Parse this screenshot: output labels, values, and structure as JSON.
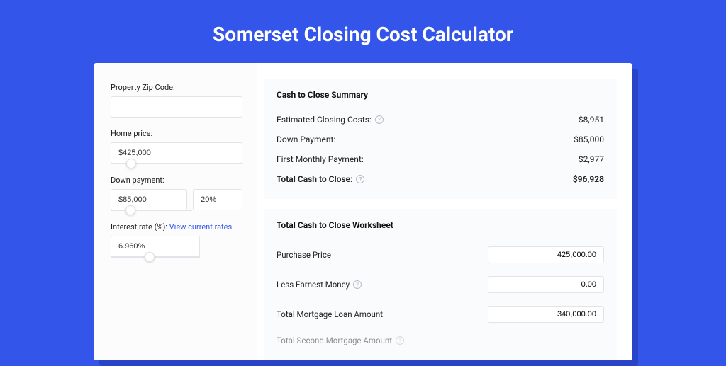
{
  "page": {
    "title": "Somerset Closing Cost Calculator",
    "background_color": "#3355ea"
  },
  "form": {
    "zip": {
      "label": "Property Zip Code:",
      "value": ""
    },
    "home_price": {
      "label": "Home price:",
      "value": "$425,000",
      "slider_pct": 12
    },
    "down_payment": {
      "label": "Down payment:",
      "value": "$85,000",
      "pct_value": "20%",
      "slider_pct": 18
    },
    "interest": {
      "label": "Interest rate (%): ",
      "link_text": "View current rates",
      "value": "6.960%",
      "slider_pct": 38
    }
  },
  "summary": {
    "heading": "Cash to Close Summary",
    "rows": [
      {
        "label": "Estimated Closing Costs:",
        "help": true,
        "value": "$8,951",
        "bold": false
      },
      {
        "label": "Down Payment:",
        "help": false,
        "value": "$85,000",
        "bold": false
      },
      {
        "label": "First Monthly Payment:",
        "help": false,
        "value": "$2,977",
        "bold": false
      },
      {
        "label": "Total Cash to Close:",
        "help": true,
        "value": "$96,928",
        "bold": true
      }
    ]
  },
  "worksheet": {
    "heading": "Total Cash to Close Worksheet",
    "rows": [
      {
        "label": "Purchase Price",
        "help": false,
        "value": "425,000.00"
      },
      {
        "label": "Less Earnest Money",
        "help": true,
        "value": "0.00"
      },
      {
        "label": "Total Mortgage Loan Amount",
        "help": false,
        "value": "340,000.00"
      }
    ],
    "partial_row_label": "Total Second Mortgage Amount"
  }
}
